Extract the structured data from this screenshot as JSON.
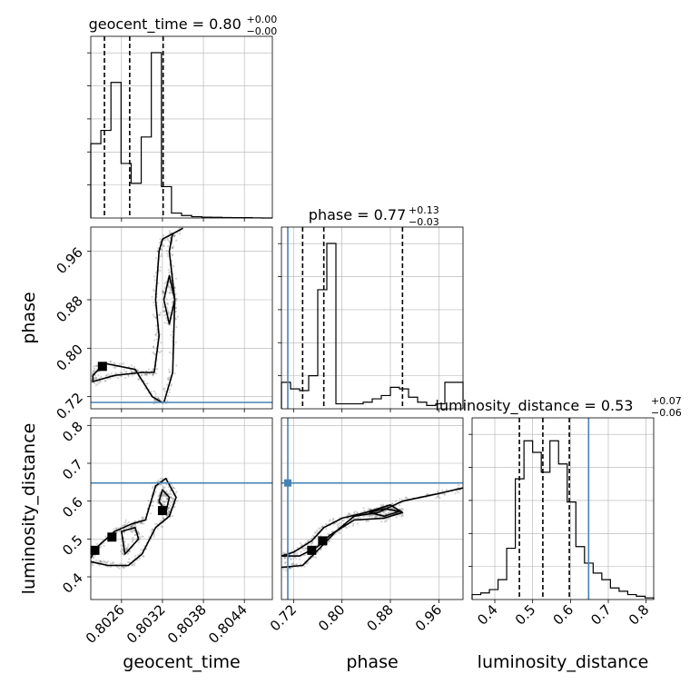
{
  "chart_data": {
    "type": "corner",
    "parameters": [
      {
        "name": "geocent_time",
        "xlabel": "geocent_time",
        "ylabel": "",
        "title_main": "geocent_time = 0.80",
        "title_sup": "+0.00",
        "title_sub": "−0.00",
        "median": 0.8,
        "err_plus": 0.0,
        "err_minus": 0.0,
        "quantile_lines": [
          0.80235,
          0.80272,
          0.80321
        ],
        "truth": null,
        "range": [
          0.80215,
          0.80481
        ],
        "ticks": [
          0.8026,
          0.8032,
          0.8038,
          0.8044
        ],
        "tick_labels": [
          "0.8026",
          "0.8032",
          "0.8038",
          "0.8044"
        ],
        "histogram": [
          0.45,
          0.53,
          0.82,
          0.33,
          0.21,
          0.49,
          1.0,
          0.19,
          0.03,
          0.015,
          0.008,
          0.005,
          0.004,
          0.003,
          0.002,
          0.002,
          0.001,
          0.0
        ]
      },
      {
        "name": "phase",
        "xlabel": "phase",
        "ylabel": "phase",
        "title_main": "phase = 0.77",
        "title_sup": "+0.13",
        "title_sub": "−0.03",
        "median": 0.77,
        "err_plus": 0.13,
        "err_minus": 0.03,
        "quantile_lines": [
          0.735,
          0.77,
          0.9
        ],
        "truth": 0.7105,
        "range": [
          0.7,
          1.0
        ],
        "ticks": [
          0.72,
          0.8,
          0.88,
          0.96
        ],
        "tick_labels": [
          "0.72",
          "0.80",
          "0.88",
          "0.96"
        ],
        "histogram": [
          0.16,
          0.12,
          0.11,
          0.2,
          0.72,
          1.0,
          0.03,
          0.03,
          0.03,
          0.04,
          0.06,
          0.08,
          0.13,
          0.12,
          0.07,
          0.04,
          0.02,
          0.03,
          0.16,
          0.16
        ]
      },
      {
        "name": "luminosity_distance",
        "xlabel": "luminosity_distance",
        "ylabel": "luminosity_distance",
        "title_main": "luminosity_distance = 0.53",
        "title_sup": "+0.07",
        "title_sub": "−0.06",
        "median": 0.53,
        "err_plus": 0.07,
        "err_minus": 0.06,
        "quantile_lines": [
          0.465,
          0.527,
          0.597
        ],
        "truth": 0.648,
        "range": [
          0.34,
          0.82
        ],
        "ticks": [
          0.4,
          0.5,
          0.6,
          0.7,
          0.8
        ],
        "tick_labels": [
          "0.4",
          "0.5",
          "0.6",
          "0.7",
          "0.8"
        ],
        "histogram": [
          0.03,
          0.04,
          0.06,
          0.12,
          0.31,
          0.73,
          0.96,
          0.89,
          0.77,
          0.96,
          0.82,
          0.59,
          0.32,
          0.22,
          0.16,
          0.12,
          0.07,
          0.05,
          0.03,
          0.02,
          0.01
        ]
      }
    ],
    "scatter_cells": [
      {
        "x_param": "geocent_time",
        "y_param": "phase",
        "contour_paths": [
          [
            [
              0.8032,
              0.71
            ],
            [
              0.80305,
              0.72
            ],
            [
              0.8028,
              0.765
            ],
            [
              0.80235,
              0.775
            ],
            [
              0.80218,
              0.755
            ],
            [
              0.80218,
              0.745
            ],
            [
              0.8025,
              0.755
            ],
            [
              0.8029,
              0.76
            ],
            [
              0.80308,
              0.76
            ],
            [
              0.80315,
              0.82
            ],
            [
              0.8031,
              0.88
            ],
            [
              0.80315,
              0.96
            ],
            [
              0.8032,
              0.98
            ],
            [
              0.8035,
              0.998
            ]
          ],
          [
            [
              0.80322,
              0.71
            ],
            [
              0.80335,
              0.76
            ],
            [
              0.80338,
              0.88
            ],
            [
              0.8033,
              0.96
            ],
            [
              0.80335,
              0.99
            ]
          ],
          [
            [
              0.80322,
              0.88
            ],
            [
              0.8033,
              0.84
            ],
            [
              0.80338,
              0.88
            ],
            [
              0.8033,
              0.92
            ],
            [
              0.80322,
              0.88
            ]
          ]
        ],
        "fills": [
          [
            0.80232,
            0.77
          ]
        ],
        "truth_y": 0.7105
      },
      {
        "x_param": "geocent_time",
        "y_param": "luminosity_distance",
        "contour_paths": [
          [
            [
              0.80215,
              0.45
            ],
            [
              0.80225,
              0.48
            ],
            [
              0.8025,
              0.52
            ],
            [
              0.80275,
              0.54
            ],
            [
              0.80295,
              0.55
            ],
            [
              0.8031,
              0.64
            ],
            [
              0.80325,
              0.66
            ],
            [
              0.8034,
              0.61
            ],
            [
              0.8033,
              0.56
            ],
            [
              0.8031,
              0.53
            ],
            [
              0.8029,
              0.46
            ],
            [
              0.8027,
              0.43
            ],
            [
              0.8024,
              0.43
            ],
            [
              0.80215,
              0.44
            ]
          ],
          [
            [
              0.80285,
              0.5
            ],
            [
              0.80265,
              0.46
            ],
            [
              0.8026,
              0.52
            ],
            [
              0.8028,
              0.53
            ],
            [
              0.80285,
              0.5
            ]
          ],
          [
            [
              0.80315,
              0.6
            ],
            [
              0.80325,
              0.57
            ],
            [
              0.8033,
              0.61
            ],
            [
              0.8032,
              0.63
            ],
            [
              0.80315,
              0.6
            ]
          ]
        ],
        "fills": [
          [
            0.80221,
            0.47
          ],
          [
            0.80246,
            0.505
          ],
          [
            0.8032,
            0.575
          ]
        ],
        "truth_y": 0.648
      },
      {
        "x_param": "phase",
        "y_param": "luminosity_distance",
        "contour_paths": [
          [
            [
              0.7,
              0.425
            ],
            [
              0.735,
              0.43
            ],
            [
              0.76,
              0.47
            ],
            [
              0.79,
              0.52
            ],
            [
              0.82,
              0.56
            ],
            [
              0.86,
              0.57
            ],
            [
              0.9,
              0.6
            ],
            [
              0.96,
              0.62
            ],
            [
              1.0,
              0.635
            ]
          ],
          [
            [
              0.7,
              0.455
            ],
            [
              0.72,
              0.465
            ],
            [
              0.75,
              0.495
            ],
            [
              0.77,
              0.53
            ],
            [
              0.8,
              0.555
            ],
            [
              0.84,
              0.57
            ],
            [
              0.88,
              0.59
            ],
            [
              0.9,
              0.57
            ],
            [
              0.87,
              0.555
            ],
            [
              0.82,
              0.55
            ],
            [
              0.78,
              0.51
            ],
            [
              0.76,
              0.48
            ],
            [
              0.73,
              0.455
            ],
            [
              0.7,
              0.455
            ]
          ],
          [
            [
              0.845,
              0.57
            ],
            [
              0.87,
              0.58
            ],
            [
              0.895,
              0.573
            ],
            [
              0.87,
              0.56
            ],
            [
              0.845,
              0.57
            ]
          ]
        ],
        "fills": [
          [
            0.75,
            0.47
          ],
          [
            0.768,
            0.495
          ]
        ],
        "truth_x": 0.7105,
        "truth_y": 0.648
      }
    ],
    "grid": true,
    "line_colors": {
      "hist": "#000000",
      "quantile": "#000000",
      "truth": "#4682b4",
      "scatter": "#555555"
    }
  }
}
